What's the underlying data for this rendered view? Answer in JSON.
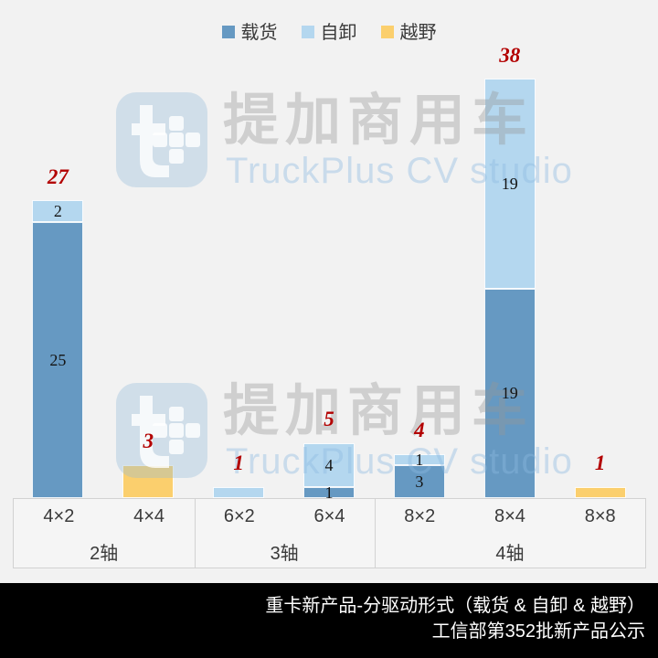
{
  "legend": {
    "items": [
      {
        "label": "载货",
        "color": "#6699c2"
      },
      {
        "label": "自卸",
        "color": "#b4d7ef"
      },
      {
        "label": "越野",
        "color": "#fbcf6d"
      }
    ]
  },
  "watermark": {
    "brand_cn": "提加商用车",
    "brand_en": "TruckPlus CV studio",
    "logo": "t-plus-logo"
  },
  "footer": {
    "line1": "重卡新产品-分驱动形式（载货 & 自卸 & 越野）",
    "line2": "工信部第352批新产品公示"
  },
  "chart_data": {
    "type": "bar",
    "stacked": true,
    "title": "重卡新产品-分驱动形式（载货 & 自卸 & 越野）",
    "subtitle": "工信部第352批新产品公示",
    "categories": [
      "4×2",
      "4×4",
      "6×2",
      "6×4",
      "8×2",
      "8×4",
      "8×8"
    ],
    "group_labels": [
      {
        "label": "2轴",
        "span": 2
      },
      {
        "label": "3轴",
        "span": 2
      },
      {
        "label": "4轴",
        "span": 3
      }
    ],
    "series": [
      {
        "name": "载货",
        "color": "#6699c2",
        "values": [
          25,
          0,
          0,
          1,
          3,
          19,
          0
        ]
      },
      {
        "name": "自卸",
        "color": "#b4d7ef",
        "values": [
          2,
          0,
          1,
          4,
          1,
          19,
          0
        ]
      },
      {
        "name": "越野",
        "color": "#fbcf6d",
        "values": [
          0,
          3,
          0,
          0,
          0,
          0,
          1
        ]
      }
    ],
    "totals": [
      27,
      3,
      1,
      5,
      4,
      38,
      1
    ],
    "total_label_color": "#b30000",
    "ylim": [
      0,
      45
    ],
    "legend_position": "top",
    "grid": false
  }
}
